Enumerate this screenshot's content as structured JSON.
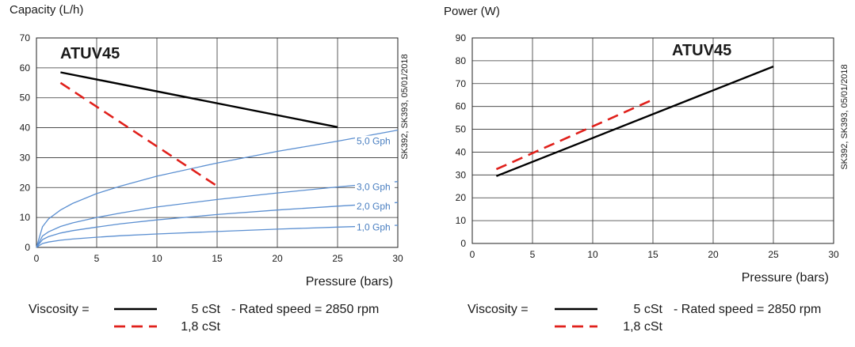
{
  "chart_data": [
    {
      "type": "line",
      "title": "Capacity (L/h)",
      "model": "ATUV45",
      "side_note": "SK392, SK393, 05/01/2018",
      "xlabel": "Pressure (bars)",
      "xlim": [
        0,
        30
      ],
      "ylim": [
        0,
        70
      ],
      "xticks": [
        0,
        5,
        10,
        15,
        20,
        25,
        30
      ],
      "yticks": [
        0,
        10,
        20,
        30,
        40,
        50,
        60,
        70
      ],
      "grid": true,
      "series": [
        {
          "style": "solid",
          "color": "#000000",
          "x": [
            2,
            25
          ],
          "y": [
            58.5,
            40.2
          ]
        },
        {
          "style": "dashed",
          "color": "#e0201b",
          "x": [
            2,
            15
          ],
          "y": [
            55,
            20.5
          ]
        }
      ],
      "nozzle_curves": [
        {
          "name": "5,0 Gph",
          "x": [
            0,
            0.5,
            1,
            2,
            3,
            5,
            7,
            10,
            15,
            20,
            25,
            30
          ],
          "y": [
            0,
            6.9,
            9.5,
            12.5,
            14.7,
            18,
            20.5,
            23.8,
            28.2,
            32.1,
            35.5,
            39.2
          ]
        },
        {
          "name": "3,0 Gph",
          "x": [
            0,
            0.5,
            1,
            2,
            3,
            5,
            7,
            10,
            15,
            20,
            25,
            30
          ],
          "y": [
            0,
            3.8,
            5.2,
            7,
            8.2,
            10,
            11.5,
            13.5,
            16,
            18.2,
            20.2,
            22
          ]
        },
        {
          "name": "2,0 Gph",
          "x": [
            0,
            0.5,
            1,
            2,
            3,
            5,
            7,
            10,
            15,
            20,
            25,
            30
          ],
          "y": [
            0,
            2.6,
            3.6,
            4.8,
            5.6,
            6.8,
            7.9,
            9.2,
            11,
            12.5,
            13.8,
            15
          ]
        },
        {
          "name": "1,0 Gph",
          "x": [
            0,
            0.5,
            1,
            2,
            3,
            5,
            7,
            10,
            15,
            20,
            25,
            30
          ],
          "y": [
            0,
            1.3,
            1.8,
            2.4,
            2.8,
            3.4,
            3.9,
            4.5,
            5.3,
            6.1,
            6.8,
            7.4
          ]
        }
      ]
    },
    {
      "type": "line",
      "title": "Power (W)",
      "model": "ATUV45",
      "side_note": "SK392, SK393, 05/01/2018",
      "xlabel": "Pressure (bars)",
      "xlim": [
        0,
        30
      ],
      "ylim": [
        0,
        90
      ],
      "xticks": [
        0,
        5,
        10,
        15,
        20,
        25,
        30
      ],
      "yticks": [
        0,
        10,
        20,
        30,
        40,
        50,
        60,
        70,
        80,
        90
      ],
      "grid": true,
      "series": [
        {
          "style": "solid",
          "color": "#000000",
          "x": [
            2,
            25
          ],
          "y": [
            29.5,
            77.5
          ]
        },
        {
          "style": "dashed",
          "color": "#e0201b",
          "x": [
            2,
            15
          ],
          "y": [
            32.5,
            63
          ]
        }
      ]
    }
  ],
  "legends": [
    {
      "label": "Viscosity =",
      "solid": "5 cSt",
      "dashed": "1,8 cSt",
      "note": "- Rated speed = 2850 rpm"
    },
    {
      "label": "Viscosity =",
      "solid": "5 cSt",
      "dashed": "1,8 cSt",
      "note": "- Rated speed = 2850 rpm"
    }
  ]
}
